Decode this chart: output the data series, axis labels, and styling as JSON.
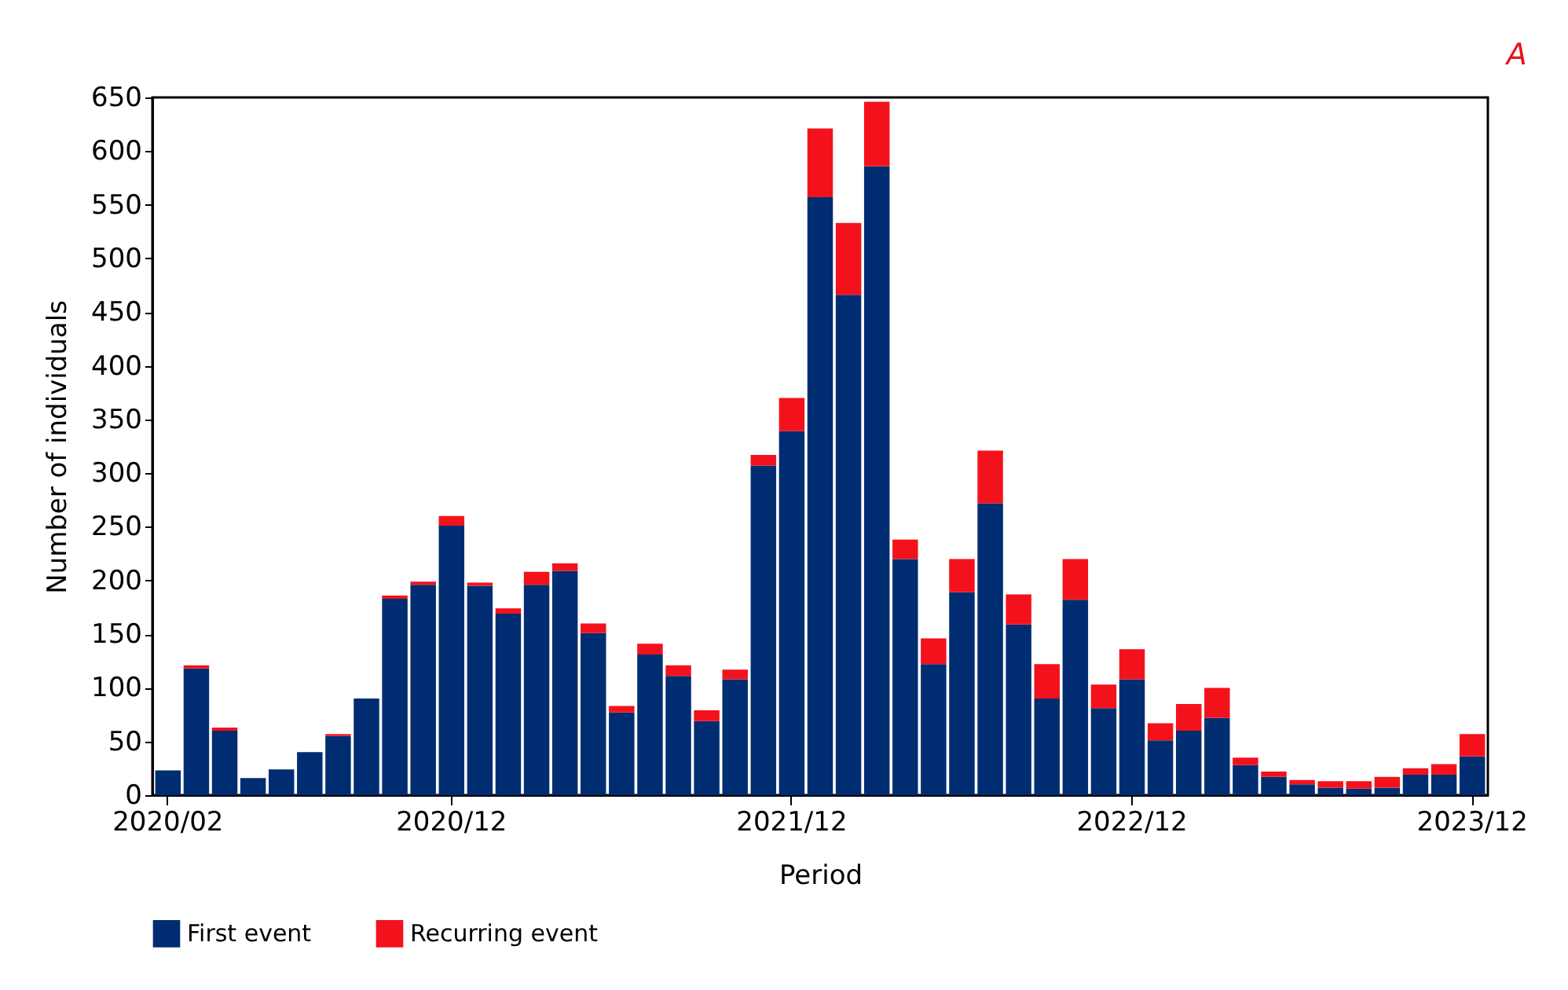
{
  "chart_data": {
    "type": "bar",
    "stacked": true,
    "xlabel": "Period",
    "ylabel": "Number of individuals",
    "annotations": [
      "A"
    ],
    "categories": [
      "2020/02",
      null,
      null,
      null,
      null,
      null,
      null,
      null,
      null,
      null,
      "2020/12",
      null,
      null,
      null,
      null,
      null,
      null,
      null,
      null,
      null,
      null,
      null,
      "2021/12",
      null,
      null,
      null,
      null,
      null,
      null,
      null,
      null,
      null,
      null,
      null,
      "2022/12",
      null,
      null,
      null,
      null,
      null,
      null,
      null,
      null,
      null,
      null,
      null,
      "2023/12"
    ],
    "series": [
      {
        "name": "First event",
        "color": "#002d72",
        "values": [
          23,
          118,
          60,
          16,
          24,
          40,
          55,
          90,
          183,
          196,
          251,
          195,
          169,
          196,
          209,
          151,
          77,
          131,
          111,
          69,
          108,
          307,
          339,
          557,
          466,
          586,
          220,
          122,
          189,
          272,
          159,
          90,
          182,
          81,
          108,
          51,
          60,
          72,
          28,
          17,
          10,
          7,
          6,
          7,
          19,
          19,
          36
        ]
      },
      {
        "name": "Recurring event",
        "color": "#f3121c",
        "values": [
          0,
          3,
          3,
          0,
          0,
          0,
          2,
          0,
          3,
          3,
          9,
          3,
          5,
          12,
          7,
          9,
          6,
          10,
          10,
          10,
          9,
          10,
          31,
          64,
          67,
          60,
          18,
          24,
          31,
          49,
          28,
          32,
          38,
          22,
          28,
          16,
          25,
          28,
          7,
          5,
          4,
          6,
          7,
          10,
          6,
          10,
          21
        ]
      }
    ],
    "ylim": [
      0,
      650
    ],
    "yticks": [
      0,
      50,
      100,
      150,
      200,
      250,
      300,
      350,
      400,
      450,
      500,
      550,
      600,
      650
    ],
    "grid": false,
    "legend": "bottom"
  }
}
